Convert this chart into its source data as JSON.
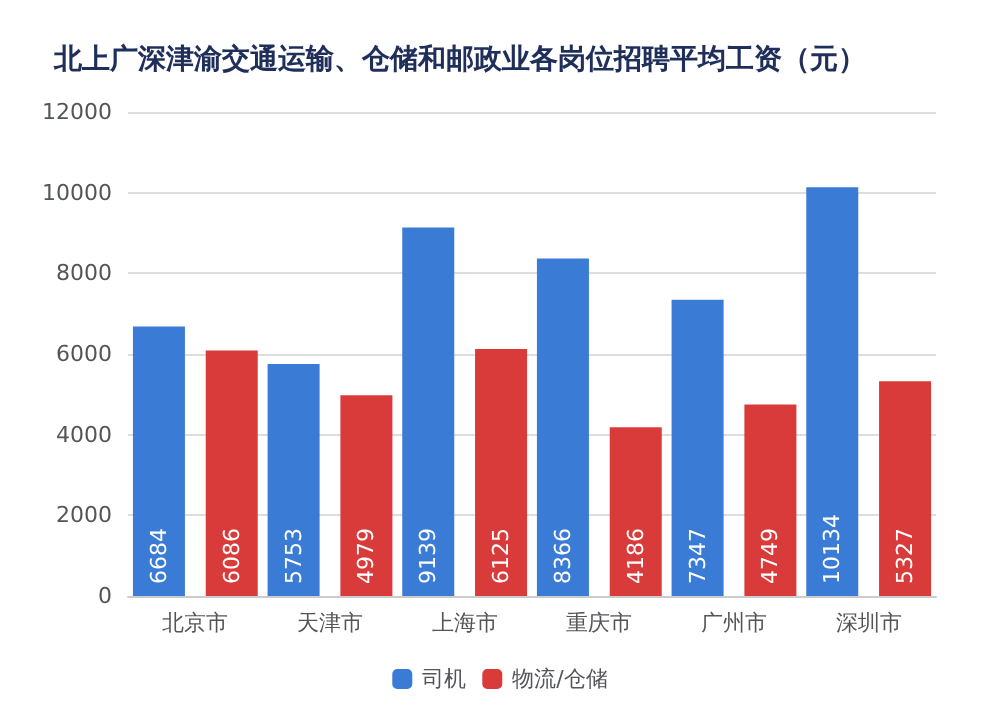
{
  "chart_data": {
    "type": "bar",
    "title": "北上广深津渝交通运输、仓储和邮政业各岗位招聘平均工资（元）",
    "categories": [
      "北京市",
      "天津市",
      "上海市",
      "重庆市",
      "广州市",
      "深圳市"
    ],
    "series": [
      {
        "name": "司机",
        "color": "#3a7bd5",
        "values": [
          6684,
          5753,
          9139,
          8366,
          7347,
          10134
        ]
      },
      {
        "name": "物流/仓储",
        "color": "#d93a3a",
        "values": [
          6086,
          4979,
          6125,
          4186,
          4749,
          5327
        ]
      }
    ],
    "ylim": [
      0,
      12000
    ],
    "yticks": [
      0,
      2000,
      4000,
      6000,
      8000,
      10000,
      12000
    ],
    "grid": "y",
    "legend": "bottom",
    "data_labels": true
  }
}
